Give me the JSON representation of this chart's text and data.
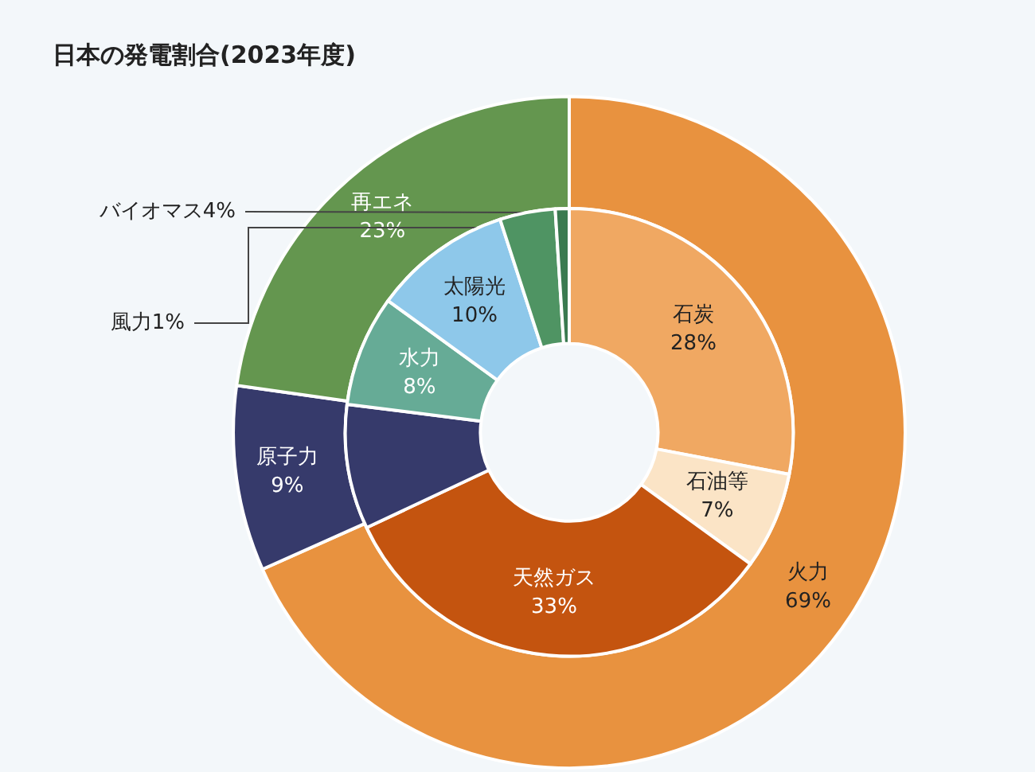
{
  "chart_data": [
    {
      "type": "donut",
      "title": "日本の発電割合(2023年度)",
      "categories": [
        "火力",
        "原子力",
        "再エネ"
      ],
      "values": [
        69,
        9,
        23
      ],
      "value_labels": [
        "69%",
        "9%",
        "23%"
      ],
      "colors": [
        "#e8923f",
        "#363a6b",
        "#64964f"
      ]
    },
    {
      "type": "donut",
      "categories": [
        "石炭",
        "石油等",
        "天然ガス",
        null,
        "水力",
        "太陽光",
        "バイオマス",
        "風力"
      ],
      "values": [
        28,
        7,
        33,
        9,
        8,
        10,
        4,
        1
      ],
      "value_labels": [
        "28%",
        "7%",
        "33%",
        null,
        "8%",
        "10%",
        "4%",
        "1%"
      ],
      "colors": [
        "#f0a862",
        "#fbe4c6",
        "#c4540f",
        "#363a6b",
        "#66ab96",
        "#8ec8ea",
        "#4f9463",
        "#3a7a50"
      ]
    }
  ]
}
